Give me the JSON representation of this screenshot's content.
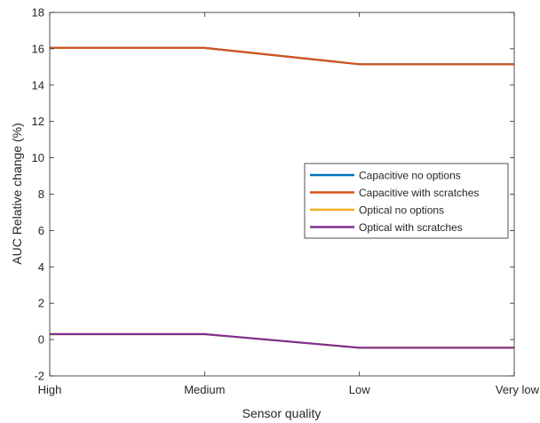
{
  "chart_data": {
    "type": "line",
    "title": "",
    "xlabel": "Sensor quality",
    "ylabel": "AUC Relative change (%)",
    "categories": [
      "High",
      "Medium",
      "Low",
      "Very low"
    ],
    "ylim": [
      -2,
      18
    ],
    "yticks": [
      -2,
      0,
      2,
      4,
      6,
      8,
      10,
      12,
      14,
      16,
      18
    ],
    "grid": false,
    "legend_position": "center-right",
    "series": [
      {
        "name": "Capacitive no options",
        "color": "#0072BD",
        "values": [
          16.05,
          16.05,
          15.15,
          15.15
        ]
      },
      {
        "name": "Capacitive with scratches",
        "color": "#D95319",
        "values": [
          16.05,
          16.05,
          15.15,
          15.15
        ]
      },
      {
        "name": "Optical no options",
        "color": "#EDB120",
        "values": [
          0.3,
          0.3,
          -0.45,
          -0.45
        ]
      },
      {
        "name": "Optical with scratches",
        "color": "#7E2F8E",
        "values": [
          0.3,
          0.3,
          -0.45,
          -0.45
        ]
      }
    ]
  }
}
